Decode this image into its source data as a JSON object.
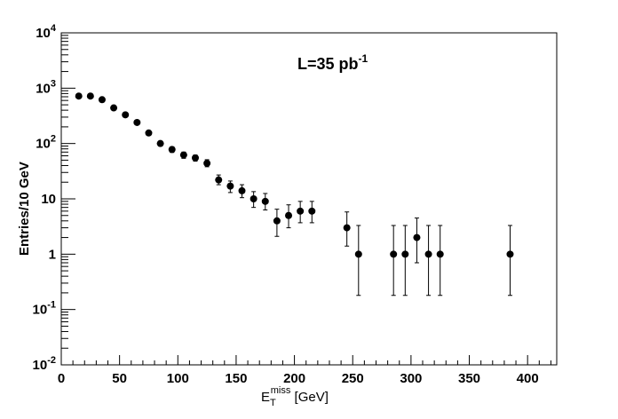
{
  "chart_data": {
    "type": "scatter",
    "title": "",
    "annotation": {
      "base": "L=35 pb",
      "sup": "-1"
    },
    "xlabel": {
      "main": "E",
      "sub": "T",
      "sup": "miss",
      "unit": " [GeV]"
    },
    "ylabel": "Entries/10 GeV",
    "xlim": [
      0,
      425
    ],
    "ylim": [
      0.01,
      10000
    ],
    "ylog": true,
    "grid": false,
    "xticks": [
      0,
      50,
      100,
      150,
      200,
      250,
      300,
      350,
      400
    ],
    "yticks": [
      {
        "v": 0.01,
        "base": "10",
        "exp": "-2"
      },
      {
        "v": 0.1,
        "base": "10",
        "exp": "-1"
      },
      {
        "v": 1,
        "base": "1",
        "exp": ""
      },
      {
        "v": 10,
        "base": "10",
        "exp": ""
      },
      {
        "v": 100,
        "base": "10",
        "exp": "2"
      },
      {
        "v": 1000,
        "base": "10",
        "exp": "3"
      },
      {
        "v": 10000,
        "base": "10",
        "exp": "4"
      }
    ],
    "points": [
      {
        "x": 15,
        "y": 720,
        "lo": 693,
        "hi": 747
      },
      {
        "x": 25,
        "y": 720,
        "lo": 693,
        "hi": 747
      },
      {
        "x": 35,
        "y": 620,
        "lo": 595,
        "hi": 645
      },
      {
        "x": 45,
        "y": 440,
        "lo": 419,
        "hi": 461
      },
      {
        "x": 55,
        "y": 330,
        "lo": 312,
        "hi": 348
      },
      {
        "x": 65,
        "y": 240,
        "lo": 225,
        "hi": 255
      },
      {
        "x": 75,
        "y": 155,
        "lo": 143,
        "hi": 167
      },
      {
        "x": 85,
        "y": 100,
        "lo": 90,
        "hi": 110
      },
      {
        "x": 95,
        "y": 78,
        "lo": 69,
        "hi": 87
      },
      {
        "x": 105,
        "y": 62,
        "lo": 54,
        "hi": 70
      },
      {
        "x": 115,
        "y": 55,
        "lo": 48,
        "hi": 62
      },
      {
        "x": 125,
        "y": 44,
        "lo": 38,
        "hi": 51
      },
      {
        "x": 135,
        "y": 22,
        "lo": 18,
        "hi": 27
      },
      {
        "x": 145,
        "y": 17,
        "lo": 13,
        "hi": 21
      },
      {
        "x": 155,
        "y": 14,
        "lo": 10.5,
        "hi": 18
      },
      {
        "x": 165,
        "y": 10,
        "lo": 7,
        "hi": 13.5
      },
      {
        "x": 175,
        "y": 9,
        "lo": 6.3,
        "hi": 12.5
      },
      {
        "x": 185,
        "y": 4,
        "lo": 2.1,
        "hi": 6.5
      },
      {
        "x": 195,
        "y": 5,
        "lo": 3,
        "hi": 7.8
      },
      {
        "x": 205,
        "y": 6,
        "lo": 3.7,
        "hi": 9
      },
      {
        "x": 215,
        "y": 6,
        "lo": 3.7,
        "hi": 9
      },
      {
        "x": 245,
        "y": 3,
        "lo": 1.4,
        "hi": 5.8
      },
      {
        "x": 255,
        "y": 1,
        "lo": 0.18,
        "hi": 3.3
      },
      {
        "x": 285,
        "y": 1,
        "lo": 0.18,
        "hi": 3.3
      },
      {
        "x": 295,
        "y": 1,
        "lo": 0.18,
        "hi": 3.3
      },
      {
        "x": 305,
        "y": 2,
        "lo": 0.7,
        "hi": 4.5
      },
      {
        "x": 315,
        "y": 1,
        "lo": 0.18,
        "hi": 3.3
      },
      {
        "x": 325,
        "y": 1,
        "lo": 0.18,
        "hi": 3.3
      },
      {
        "x": 385,
        "y": 1,
        "lo": 0.18,
        "hi": 3.3
      }
    ]
  }
}
